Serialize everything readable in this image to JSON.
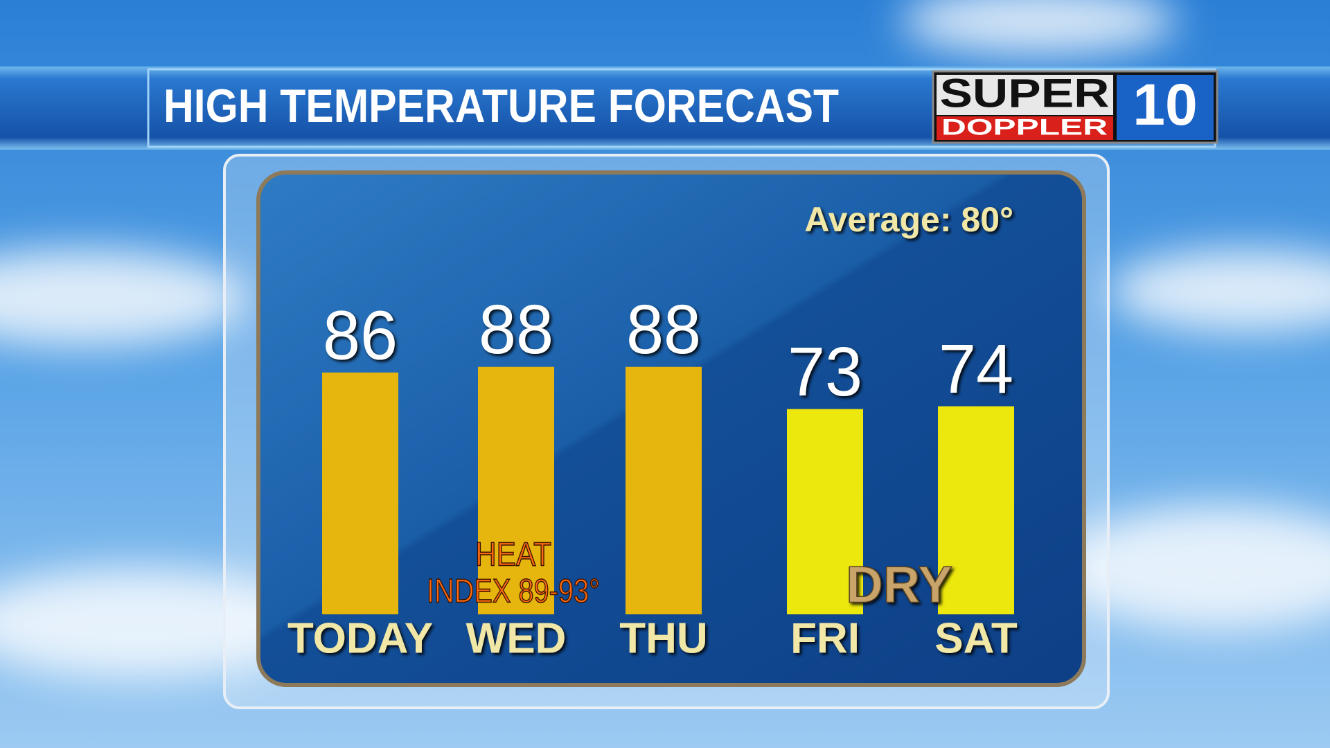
{
  "header": {
    "title": "HIGH TEMPERATURE FORECAST"
  },
  "logo": {
    "super": "SUPER",
    "doppler": "DOPPLER",
    "number": "10"
  },
  "chart_data": {
    "type": "bar",
    "categories": [
      "TODAY",
      "WED",
      "THU",
      "FRI",
      "SAT"
    ],
    "values": [
      86,
      88,
      88,
      73,
      74
    ],
    "colors": [
      "#e6b60e",
      "#e6b60e",
      "#e6b60e",
      "#ece70c",
      "#ece70c"
    ],
    "annotations": {
      "average": "Average: 80°",
      "heat_index": [
        "HEAT",
        "INDEX 89-93°"
      ],
      "dry": "DRY"
    }
  }
}
